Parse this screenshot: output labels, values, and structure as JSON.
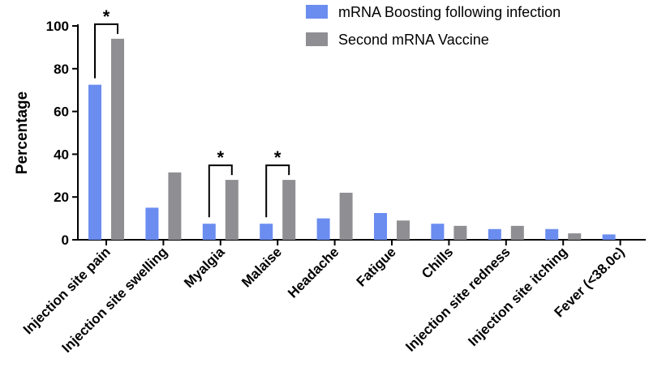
{
  "chart_data": {
    "type": "bar",
    "title": "",
    "xlabel": "",
    "ylabel": "Percentage",
    "ylim": [
      0,
      100
    ],
    "yticks": [
      0,
      20,
      40,
      60,
      80,
      100
    ],
    "legend_position": "top-right",
    "categories": [
      "Injection site pain",
      "Injection site swelling",
      "Myalgia",
      "Malaise",
      "Headache",
      "Fatigue",
      "Chills",
      "Injection site redness",
      "Injection site itching",
      "Fever (<38.0c)"
    ],
    "series": [
      {
        "name": "mRNA Boosting following infection",
        "color": "#6b8df0",
        "values": [
          72.5,
          15,
          7.5,
          7.5,
          10,
          12.5,
          7.5,
          5,
          5,
          2.5
        ]
      },
      {
        "name": "Second mRNA Vaccine",
        "color": "#8f8f93",
        "values": [
          94,
          31.5,
          28,
          28,
          22,
          9,
          6.5,
          6.5,
          3,
          0
        ]
      }
    ],
    "significance": [
      {
        "category_index": 0,
        "label": "*"
      },
      {
        "category_index": 2,
        "label": "*"
      },
      {
        "category_index": 3,
        "label": "*"
      }
    ]
  }
}
